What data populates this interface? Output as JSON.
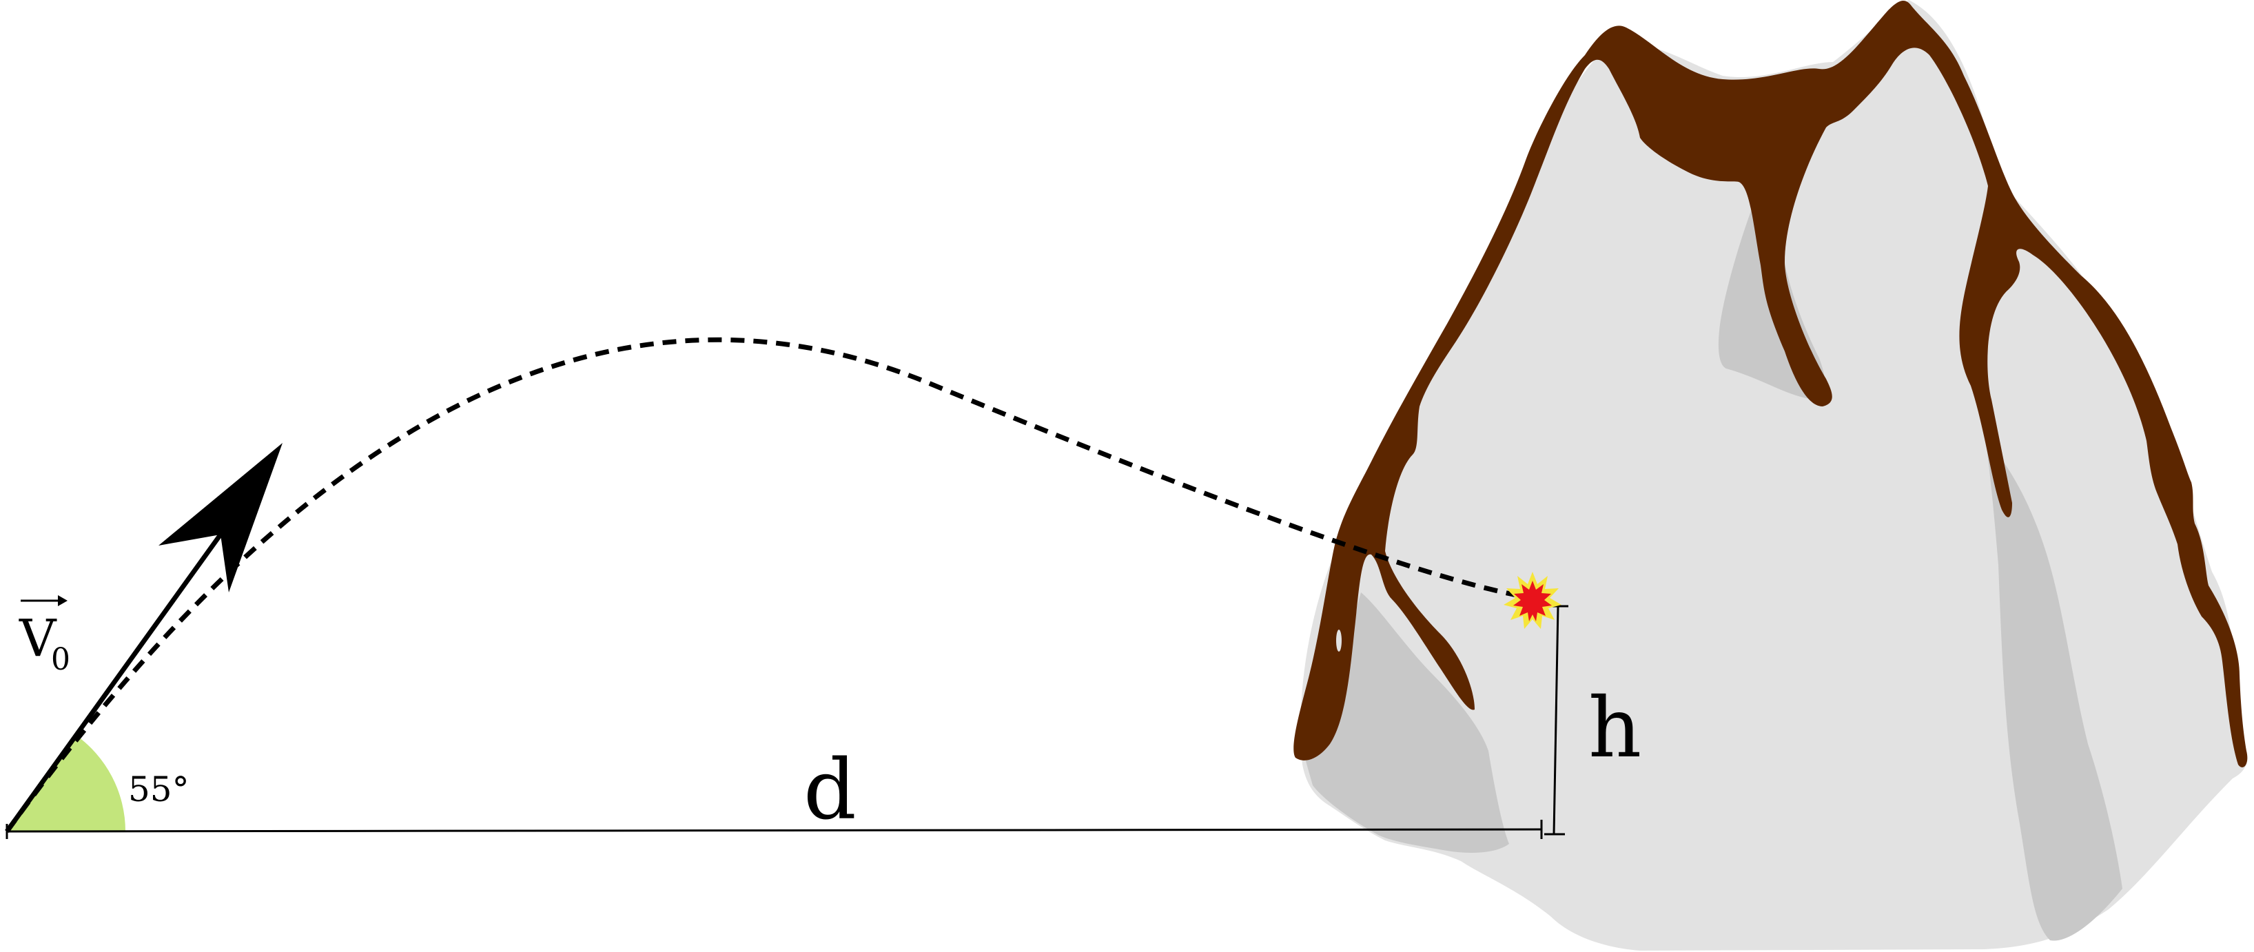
{
  "diagram": {
    "launch_angle_label": "55°",
    "velocity_label": "V",
    "velocity_subscript": "0",
    "distance_label": "d",
    "height_label": "h"
  },
  "colors": {
    "rock": "#e2e2e2",
    "rock_shadow": "#c8c8c8",
    "lava": "#5c2600",
    "angle_fill": "#c3e57c",
    "impact_outer": "#f6e53a",
    "impact_inner": "#e8131b",
    "line": "#000000"
  }
}
